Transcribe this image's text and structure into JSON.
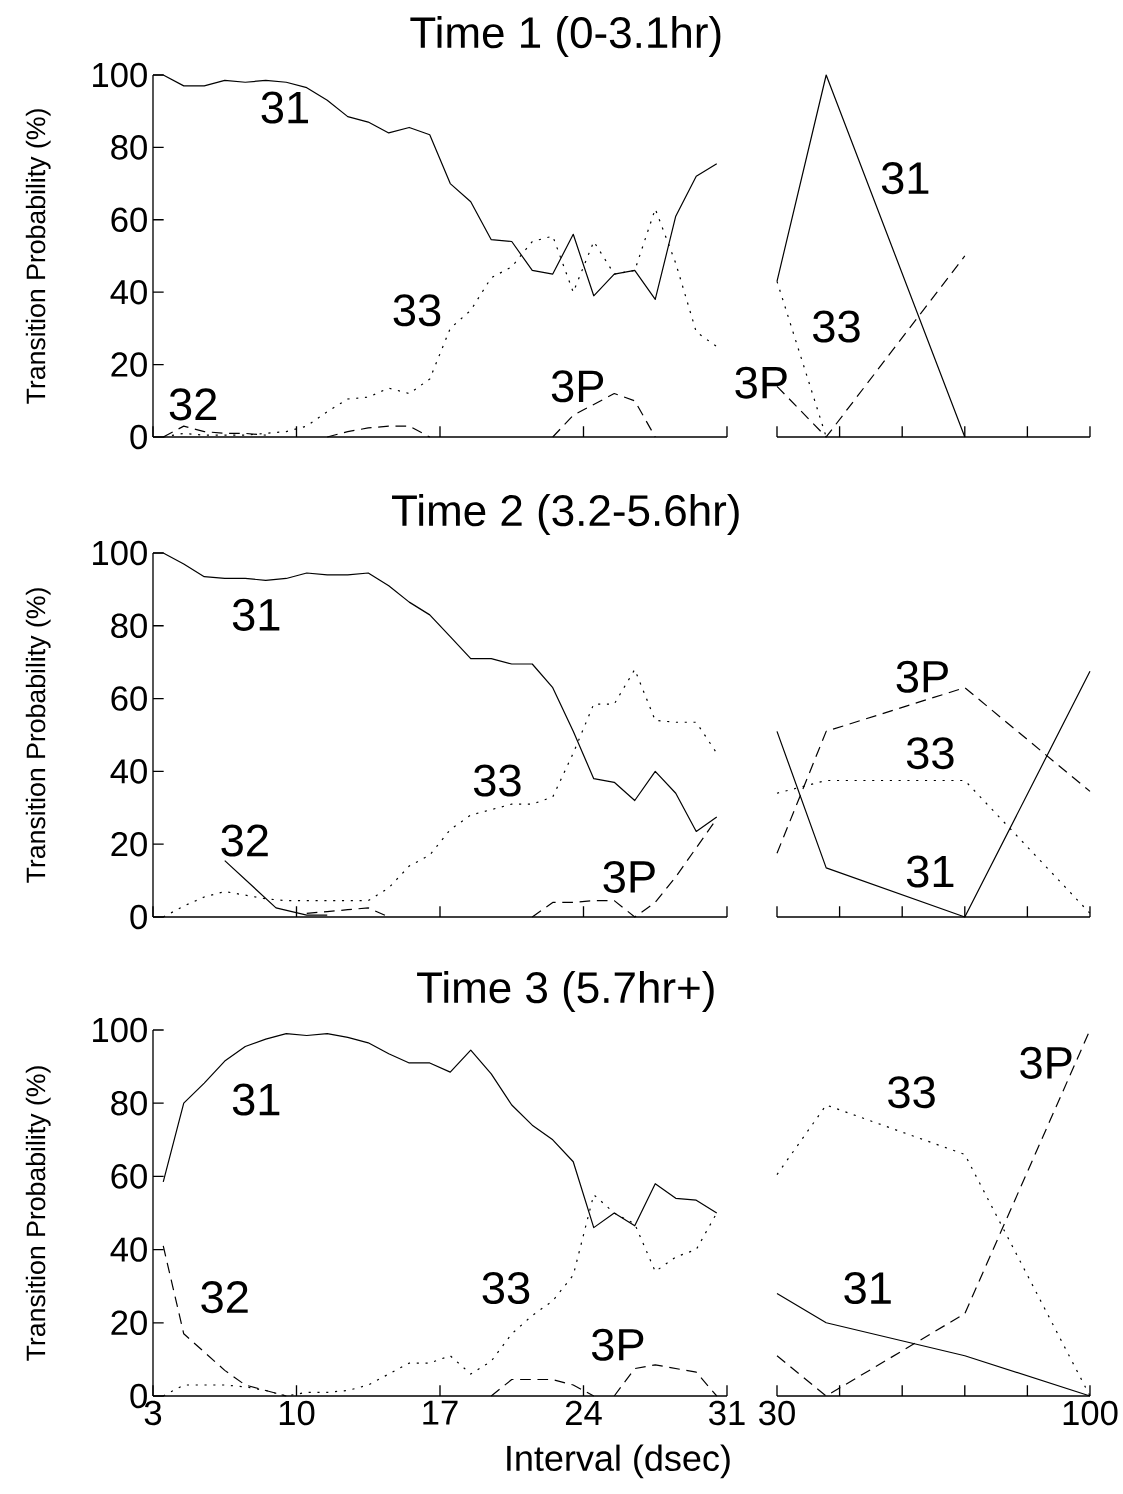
{
  "chart_data": [
    {
      "type": "line",
      "title": "Time 1 (0-3.1hr)",
      "ylabel": "Transition Probability (%)",
      "xlim": [
        3,
        31
      ],
      "ylim": [
        0,
        100
      ],
      "xticks": [
        3,
        10,
        17,
        24,
        31
      ],
      "yticks": [
        0,
        20,
        40,
        60,
        80,
        100
      ],
      "tick_labels": "y",
      "series": [
        {
          "name": "31",
          "color": "#000000",
          "line_style": "solid",
          "x": [
            3,
            3.5,
            4.5,
            5.5,
            6.5,
            7.5,
            8.5,
            9.5,
            10.5,
            11.5,
            12.5,
            13.5,
            14.5,
            15.5,
            16.5,
            17.5,
            18.5,
            19.5,
            20.5,
            21.5,
            22.5,
            23.5,
            24.5,
            25.5,
            26.5,
            27.5,
            28.5,
            29.5,
            30.5
          ],
          "values": [
            100,
            100,
            97,
            97,
            98.5,
            98,
            98.5,
            98,
            96.5,
            93,
            88.5,
            87,
            84,
            85.5,
            83.5,
            70,
            65,
            54.5,
            54,
            46,
            45,
            56,
            39,
            45,
            46,
            38,
            61,
            72,
            75.5
          ]
        },
        {
          "name": "33",
          "color": "#000000",
          "line_style": "dotted",
          "x": [
            3.5,
            4.5,
            5.5,
            6.5,
            7.5,
            8.5,
            9.5,
            10.5,
            11.5,
            12.5,
            13.5,
            14.5,
            15.5,
            16.5,
            17.5,
            18.5,
            19.5,
            20.5,
            21.5,
            22.5,
            23.5,
            24.5,
            25.5,
            26.5,
            27.5,
            28.5,
            29.5,
            30.5
          ],
          "values": [
            0,
            1,
            0.5,
            0.5,
            0.5,
            1,
            1.5,
            3,
            7,
            10.5,
            11,
            13.5,
            12,
            16,
            30,
            35,
            44,
            47,
            54,
            55.5,
            40,
            54,
            45,
            46,
            63,
            48,
            29,
            25
          ]
        },
        {
          "name": "32",
          "color": "#000000",
          "line_style": "dashed",
          "x": [
            3.5,
            4.5,
            5.5,
            6.5,
            7.5,
            8.5
          ],
          "values": [
            0,
            3,
            1.5,
            1,
            1,
            0.5
          ]
        },
        {
          "name": "3P",
          "color": "#000000",
          "line_style": "dashed",
          "x": [
            11.5,
            12.5,
            13.5,
            14.5,
            15.5,
            16.5,
            19.5,
            22.5,
            23.5,
            24.5,
            25.5,
            26.5,
            27.5
          ],
          "values": [
            0,
            1.5,
            2.5,
            3,
            3,
            0,
            null,
            0,
            6,
            9,
            12,
            10,
            0
          ]
        }
      ]
    },
    {
      "type": "line",
      "xlim": [
        30,
        100
      ],
      "ylim": [
        0,
        100
      ],
      "xticks": [
        30,
        {
          "value": 44,
          "label": null
        },
        {
          "value": 58,
          "label": null
        },
        {
          "value": 72,
          "label": null
        },
        {
          "value": 86,
          "label": null
        },
        100
      ],
      "tick_labels": false,
      "series": [
        {
          "name": "31",
          "color": "#000000",
          "line_style": "solid",
          "x": [
            30,
            41,
            72
          ],
          "values": [
            43,
            100,
            0
          ]
        },
        {
          "name": "33",
          "color": "#000000",
          "line_style": "dotted",
          "x": [
            30,
            41
          ],
          "values": [
            43,
            0
          ]
        },
        {
          "name": "3P",
          "color": "#000000",
          "line_style": "dashed",
          "x": [
            30,
            41,
            72
          ],
          "values": [
            14,
            0,
            50
          ]
        }
      ]
    },
    {
      "type": "line",
      "title": "Time 2 (3.2-5.6hr)",
      "ylabel": "Transition Probability (%)",
      "xlim": [
        3,
        31
      ],
      "ylim": [
        0,
        100
      ],
      "xticks": [
        3,
        10,
        17,
        24,
        31
      ],
      "yticks": [
        0,
        20,
        40,
        60,
        80,
        100
      ],
      "tick_labels": "y",
      "series": [
        {
          "name": "31",
          "color": "#000000",
          "line_style": "solid",
          "x": [
            3,
            3.5,
            4.5,
            5.5,
            6.5,
            7.5,
            8.5,
            9.5,
            10.5,
            11.5,
            12.5,
            13.5,
            14.5,
            15.5,
            16.5,
            17.5,
            18.5,
            19.5,
            20.5,
            21.5,
            22.5,
            23.5,
            24.5,
            25.5,
            26.5,
            27.5,
            28.5,
            29.5,
            30.5
          ],
          "values": [
            100,
            100,
            97,
            93.5,
            93,
            93,
            92.5,
            93,
            94.5,
            94,
            94,
            94.5,
            91,
            86.5,
            83,
            77,
            71,
            71,
            69.5,
            69.5,
            63,
            51,
            38,
            37,
            32,
            40,
            34,
            23.5,
            27.5
          ]
        },
        {
          "name": "33",
          "color": "#000000",
          "line_style": "dotted",
          "x": [
            3.5,
            4.5,
            5.5,
            6.5,
            7.5,
            8.5,
            9.5,
            10.5,
            11.5,
            12.5,
            13.5,
            14.5,
            15.5,
            16.5,
            17.5,
            18.5,
            19.5,
            20.5,
            21.5,
            22.5,
            23.5,
            24.5,
            25.5,
            26.5,
            27.5,
            28.5,
            29.5,
            30.5
          ],
          "values": [
            0,
            3,
            5.5,
            7,
            6,
            5,
            4.5,
            4.5,
            4.5,
            4.5,
            4.5,
            8,
            14,
            17,
            24,
            28,
            29.5,
            31,
            31,
            33,
            45,
            58.5,
            58.5,
            68,
            54,
            53.5,
            53.5,
            45
          ]
        },
        {
          "name": "32",
          "color": "#000000",
          "line_style": "solid",
          "x": [
            6.5,
            9,
            10.5,
            11.5
          ],
          "values": [
            15.5,
            2.5,
            0.5,
            0.5
          ]
        },
        {
          "name": "3P",
          "color": "#000000",
          "line_style": "dashed",
          "x": [
            10.5,
            11.5,
            12.5,
            13.5,
            14.5,
            19.5,
            21.5,
            22.5,
            23.5,
            24.5,
            25.5,
            26.5,
            27.5,
            28.5,
            29.5,
            30.5
          ],
          "values": [
            1,
            1.5,
            2,
            2.5,
            0,
            null,
            0,
            4,
            4,
            4.5,
            4.5,
            0,
            4,
            11,
            19,
            27
          ]
        }
      ]
    },
    {
      "type": "line",
      "xlim": [
        30,
        100
      ],
      "ylim": [
        0,
        100
      ],
      "xticks": [
        30,
        {
          "value": 44,
          "label": null
        },
        {
          "value": 58,
          "label": null
        },
        {
          "value": 72,
          "label": null
        },
        {
          "value": 86,
          "label": null
        },
        100
      ],
      "tick_labels": false,
      "series": [
        {
          "name": "31",
          "color": "#000000",
          "line_style": "solid",
          "x": [
            30,
            41,
            72,
            100
          ],
          "values": [
            51,
            13.5,
            0,
            67.5
          ]
        },
        {
          "name": "33",
          "color": "#000000",
          "line_style": "dotted",
          "x": [
            30,
            41,
            72,
            100
          ],
          "values": [
            34,
            37.5,
            37.5,
            1
          ]
        },
        {
          "name": "3P",
          "color": "#000000",
          "line_style": "dashed",
          "x": [
            30,
            41,
            72,
            100
          ],
          "values": [
            17.5,
            51,
            63,
            34.5
          ]
        }
      ]
    },
    {
      "type": "line",
      "title": "Time 3 (5.7hr+)",
      "xlabel": "Interval (dsec)",
      "ylabel": "Transition Probability (%)",
      "xlim": [
        3,
        31
      ],
      "ylim": [
        0,
        100
      ],
      "xticks": [
        3,
        10,
        17,
        24,
        31
      ],
      "yticks": [
        0,
        20,
        40,
        60,
        80,
        100
      ],
      "series": [
        {
          "name": "31",
          "color": "#000000",
          "line_style": "solid",
          "x": [
            3.5,
            4.5,
            5.5,
            6.5,
            7.5,
            8.5,
            9.5,
            10.5,
            11.5,
            12.5,
            13.5,
            14.5,
            15.5,
            16.5,
            17.5,
            18.5,
            19.5,
            20.5,
            21.5,
            22.5,
            23.5,
            24.5,
            25.5,
            26.5,
            27.5,
            28.5,
            29.5,
            30.5
          ],
          "values": [
            58.5,
            80,
            85.5,
            91.5,
            95.5,
            97.5,
            99,
            98.5,
            99,
            98,
            96.5,
            93.5,
            91,
            91,
            88.5,
            94.5,
            88,
            79.5,
            74,
            70,
            64,
            46,
            50,
            46.5,
            58,
            54,
            53.5,
            50
          ]
        },
        {
          "name": "33",
          "color": "#000000",
          "line_style": "dotted",
          "x": [
            3.5,
            4.5,
            5.5,
            6.5,
            7.5,
            8.5,
            9.5,
            10.5,
            11.5,
            12.5,
            13.5,
            14.5,
            15.5,
            16.5,
            17.5,
            18.5,
            19.5,
            20.5,
            21.5,
            22.5,
            23.5,
            24.5,
            25.5,
            26.5,
            27.5,
            28.5,
            29.5,
            30.5
          ],
          "values": [
            0,
            3,
            3,
            3,
            2.5,
            1.5,
            0,
            1,
            1,
            1.5,
            3,
            6,
            9,
            9,
            11,
            6,
            9.5,
            17,
            22,
            26,
            33,
            55,
            50,
            47,
            34,
            38,
            40,
            50
          ]
        },
        {
          "name": "32",
          "color": "#000000",
          "line_style": "dashed",
          "x": [
            3.5,
            4.5,
            5.5,
            6.5,
            7.5,
            8.5,
            9.5
          ],
          "values": [
            41,
            17,
            12,
            7,
            3,
            1.5,
            0
          ]
        },
        {
          "name": "3P",
          "color": "#000000",
          "line_style": "dashed",
          "x": [
            19.5,
            20.5,
            21.5,
            22.5,
            23.5,
            24.5,
            25,
            25.5,
            26.5,
            27.5,
            28.5,
            29.5,
            30.5
          ],
          "values": [
            0,
            4.5,
            4.5,
            4.5,
            3,
            0,
            null,
            0,
            7.5,
            8.5,
            7.5,
            6.5,
            0
          ]
        }
      ]
    },
    {
      "type": "line",
      "xlim": [
        30,
        100
      ],
      "ylim": [
        0,
        100
      ],
      "xticks": [
        30,
        {
          "value": 44,
          "label": null
        },
        {
          "value": 58,
          "label": null
        },
        {
          "value": 72,
          "label": null
        },
        {
          "value": 86,
          "label": null
        },
        100
      ],
      "tick_labels": "x",
      "series": [
        {
          "name": "31",
          "color": "#000000",
          "line_style": "solid",
          "x": [
            30,
            41,
            72,
            100
          ],
          "values": [
            28,
            20,
            11,
            0
          ]
        },
        {
          "name": "33",
          "color": "#000000",
          "line_style": "dotted",
          "x": [
            30,
            41,
            72,
            100
          ],
          "values": [
            60.5,
            79.5,
            66,
            0
          ]
        },
        {
          "name": "3P",
          "color": "#000000",
          "line_style": "dashed",
          "x": [
            30,
            41,
            72,
            100
          ],
          "values": [
            11,
            0,
            22.5,
            100
          ]
        }
      ]
    }
  ]
}
